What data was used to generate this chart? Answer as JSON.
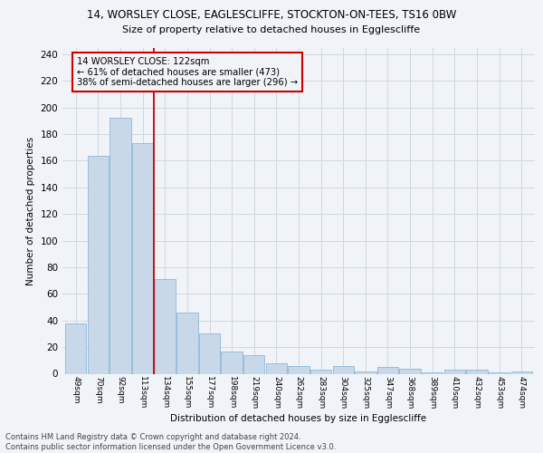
{
  "title1": "14, WORSLEY CLOSE, EAGLESCLIFFE, STOCKTON-ON-TEES, TS16 0BW",
  "title2": "Size of property relative to detached houses in Egglescliffe",
  "xlabel": "Distribution of detached houses by size in Egglescliffe",
  "ylabel": "Number of detached properties",
  "categories": [
    "49sqm",
    "70sqm",
    "92sqm",
    "113sqm",
    "134sqm",
    "155sqm",
    "177sqm",
    "198sqm",
    "219sqm",
    "240sqm",
    "262sqm",
    "283sqm",
    "304sqm",
    "325sqm",
    "347sqm",
    "368sqm",
    "389sqm",
    "410sqm",
    "432sqm",
    "453sqm",
    "474sqm"
  ],
  "values": [
    38,
    164,
    192,
    173,
    71,
    46,
    30,
    17,
    14,
    8,
    6,
    3,
    6,
    2,
    5,
    4,
    1,
    3,
    3,
    1,
    2
  ],
  "bar_color": "#c8d8e8",
  "bar_edge_color": "#7bafd4",
  "grid_color": "#d0d8e0",
  "bg_color": "#f0f4f8",
  "annotation_box_color": "#cc0000",
  "property_line_x": 3.5,
  "annotation_text": "14 WORSLEY CLOSE: 122sqm\n← 61% of detached houses are smaller (473)\n38% of semi-detached houses are larger (296) →",
  "footer": "Contains HM Land Registry data © Crown copyright and database right 2024.\nContains public sector information licensed under the Open Government Licence v3.0.",
  "ylim": [
    0,
    245
  ],
  "yticks": [
    0,
    20,
    40,
    60,
    80,
    100,
    120,
    140,
    160,
    180,
    200,
    220,
    240
  ]
}
